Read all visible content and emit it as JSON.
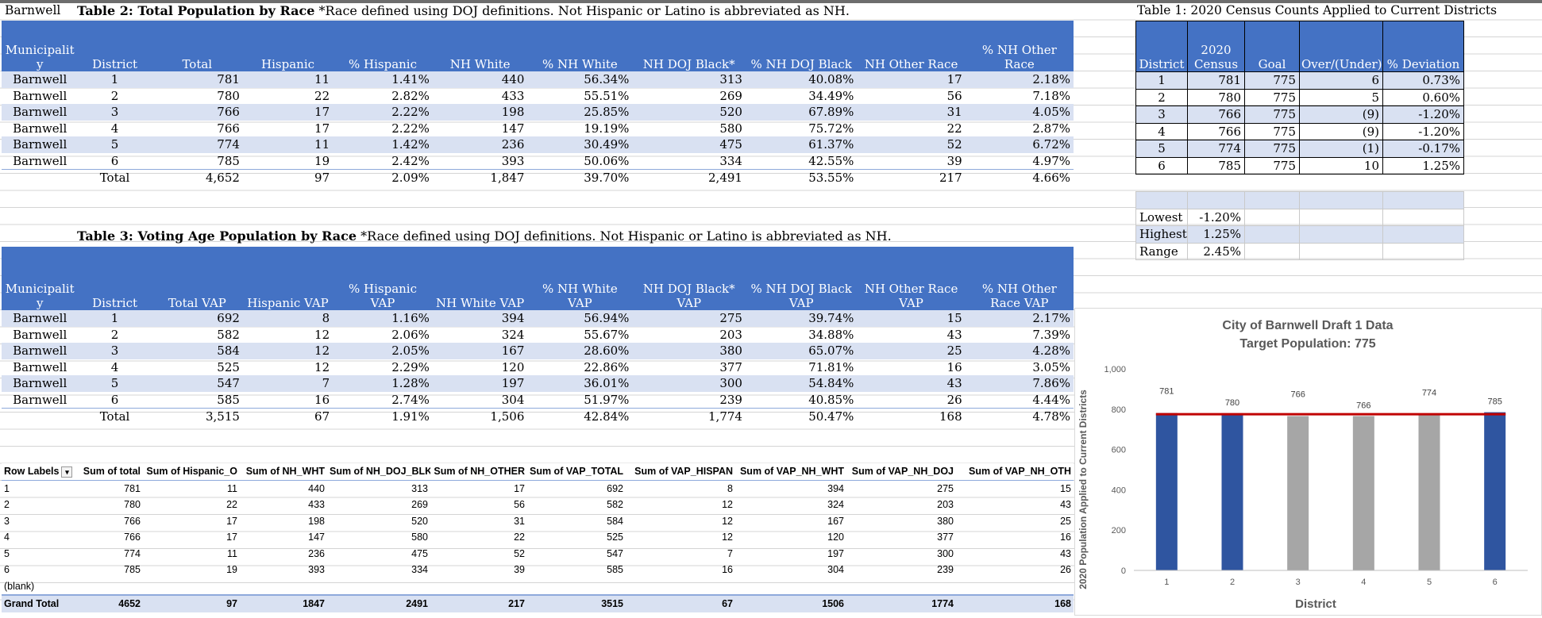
{
  "cell_a1": "Barnwell",
  "table2": {
    "title_bold": "Table 2: Total Population by Race",
    "title_note": " *Race defined using DOJ definitions. Not Hispanic or Latino is abbreviated as NH.",
    "headers": [
      "Municipalit y",
      "District",
      "Total",
      "Hispanic",
      "% Hispanic",
      "NH White",
      "% NH White",
      "NH DOJ Black*",
      "% NH DOJ Black",
      "NH Other Race",
      "% NH Other Race"
    ],
    "rows": [
      [
        "Barnwell",
        "1",
        "781",
        "11",
        "1.41%",
        "440",
        "56.34%",
        "313",
        "40.08%",
        "17",
        "2.18%"
      ],
      [
        "Barnwell",
        "2",
        "780",
        "22",
        "2.82%",
        "433",
        "55.51%",
        "269",
        "34.49%",
        "56",
        "7.18%"
      ],
      [
        "Barnwell",
        "3",
        "766",
        "17",
        "2.22%",
        "198",
        "25.85%",
        "520",
        "67.89%",
        "31",
        "4.05%"
      ],
      [
        "Barnwell",
        "4",
        "766",
        "17",
        "2.22%",
        "147",
        "19.19%",
        "580",
        "75.72%",
        "22",
        "2.87%"
      ],
      [
        "Barnwell",
        "5",
        "774",
        "11",
        "1.42%",
        "236",
        "30.49%",
        "475",
        "61.37%",
        "52",
        "6.72%"
      ],
      [
        "Barnwell",
        "6",
        "785",
        "19",
        "2.42%",
        "393",
        "50.06%",
        "334",
        "42.55%",
        "39",
        "4.97%"
      ]
    ],
    "total": [
      "",
      "Total",
      "4,652",
      "97",
      "2.09%",
      "1,847",
      "39.70%",
      "2,491",
      "53.55%",
      "217",
      "4.66%"
    ]
  },
  "table3": {
    "title_bold": "Table 3: Voting Age Population by Race",
    "title_note": " *Race defined using DOJ definitions. Not Hispanic or Latino is abbreviated as NH.",
    "headers": [
      "Municipalit y",
      "District",
      "Total VAP",
      "Hispanic VAP",
      "% Hispanic VAP",
      "NH White VAP",
      "% NH White VAP",
      "NH DOJ Black* VAP",
      "% NH DOJ Black VAP",
      "NH Other Race VAP",
      "% NH Other Race VAP"
    ],
    "rows": [
      [
        "Barnwell",
        "1",
        "692",
        "8",
        "1.16%",
        "394",
        "56.94%",
        "275",
        "39.74%",
        "15",
        "2.17%"
      ],
      [
        "Barnwell",
        "2",
        "582",
        "12",
        "2.06%",
        "324",
        "55.67%",
        "203",
        "34.88%",
        "43",
        "7.39%"
      ],
      [
        "Barnwell",
        "3",
        "584",
        "12",
        "2.05%",
        "167",
        "28.60%",
        "380",
        "65.07%",
        "25",
        "4.28%"
      ],
      [
        "Barnwell",
        "4",
        "525",
        "12",
        "2.29%",
        "120",
        "22.86%",
        "377",
        "71.81%",
        "16",
        "3.05%"
      ],
      [
        "Barnwell",
        "5",
        "547",
        "7",
        "1.28%",
        "197",
        "36.01%",
        "300",
        "54.84%",
        "43",
        "7.86%"
      ],
      [
        "Barnwell",
        "6",
        "585",
        "16",
        "2.74%",
        "304",
        "51.97%",
        "239",
        "40.85%",
        "26",
        "4.44%"
      ]
    ],
    "total": [
      "",
      "Total",
      "3,515",
      "67",
      "1.91%",
      "1,506",
      "42.84%",
      "1,774",
      "50.47%",
      "168",
      "4.78%"
    ]
  },
  "table1": {
    "title": "Table 1: 2020 Census Counts Applied to Current Districts",
    "headers": [
      "District",
      "2020 Census",
      "Goal",
      "Over/(Under)",
      "% Deviation"
    ],
    "rows": [
      [
        "1",
        "781",
        "775",
        "6",
        "0.73%"
      ],
      [
        "2",
        "780",
        "775",
        "5",
        "0.60%"
      ],
      [
        "3",
        "766",
        "775",
        "(9)",
        "-1.20%"
      ],
      [
        "4",
        "766",
        "775",
        "(9)",
        "-1.20%"
      ],
      [
        "5",
        "774",
        "775",
        "(1)",
        "-0.17%"
      ],
      [
        "6",
        "785",
        "775",
        "10",
        "1.25%"
      ]
    ],
    "stats": [
      {
        "label": "Lowest",
        "value": "-1.20%"
      },
      {
        "label": "Highest",
        "value": "1.25%"
      },
      {
        "label": "Range",
        "value": "2.45%"
      }
    ]
  },
  "pivot": {
    "headers": [
      "Row Labels",
      "Sum of total",
      "Sum of Hispanic_O",
      "Sum of NH_WHT",
      "Sum of NH_DOJ_BLK",
      "Sum of NH_OTHER",
      "Sum of VAP_TOTAL",
      "Sum of VAP_HISPAN",
      "Sum of VAP_NH_WHT",
      "Sum of VAP_NH_DOJ",
      "Sum of VAP_NH_OTH"
    ],
    "rows": [
      [
        "1",
        "781",
        "11",
        "440",
        "313",
        "17",
        "692",
        "8",
        "394",
        "275",
        "15"
      ],
      [
        "2",
        "780",
        "22",
        "433",
        "269",
        "56",
        "582",
        "12",
        "324",
        "203",
        "43"
      ],
      [
        "3",
        "766",
        "17",
        "198",
        "520",
        "31",
        "584",
        "12",
        "167",
        "380",
        "25"
      ],
      [
        "4",
        "766",
        "17",
        "147",
        "580",
        "22",
        "525",
        "12",
        "120",
        "377",
        "16"
      ],
      [
        "5",
        "774",
        "11",
        "236",
        "475",
        "52",
        "547",
        "7",
        "197",
        "300",
        "43"
      ],
      [
        "6",
        "785",
        "19",
        "393",
        "334",
        "39",
        "585",
        "16",
        "304",
        "239",
        "26"
      ],
      [
        "(blank)",
        "",
        "",
        "",
        "",
        "",
        "",
        "",
        "",
        "",
        ""
      ]
    ],
    "grand_total": [
      "Grand Total",
      "4652",
      "97",
      "1847",
      "2491",
      "217",
      "3515",
      "67",
      "1506",
      "1774",
      "168"
    ]
  },
  "chart_data": {
    "type": "bar",
    "title": "City of Barnwell Draft 1 Data",
    "subtitle": "Target Population: 775",
    "xlabel": "District",
    "ylabel": "2020 Population Applied to Current Districts",
    "categories": [
      "1",
      "2",
      "3",
      "4",
      "5",
      "6"
    ],
    "values": [
      781,
      780,
      766,
      766,
      774,
      785
    ],
    "value_labels": [
      "781",
      "780",
      "766",
      "766",
      "774",
      "785"
    ],
    "ylim": [
      0,
      1000
    ],
    "yticks": [
      0,
      200,
      400,
      600,
      800,
      1000
    ],
    "ytick_labels": [
      "0",
      "200",
      "400",
      "600",
      "800",
      "1,000"
    ],
    "target": 775,
    "bar_colors": [
      "#2f55a0",
      "#2f55a0",
      "#a6a6a6",
      "#a6a6a6",
      "#a6a6a6",
      "#2f55a0"
    ],
    "target_color": "#c00000",
    "grid": false
  }
}
